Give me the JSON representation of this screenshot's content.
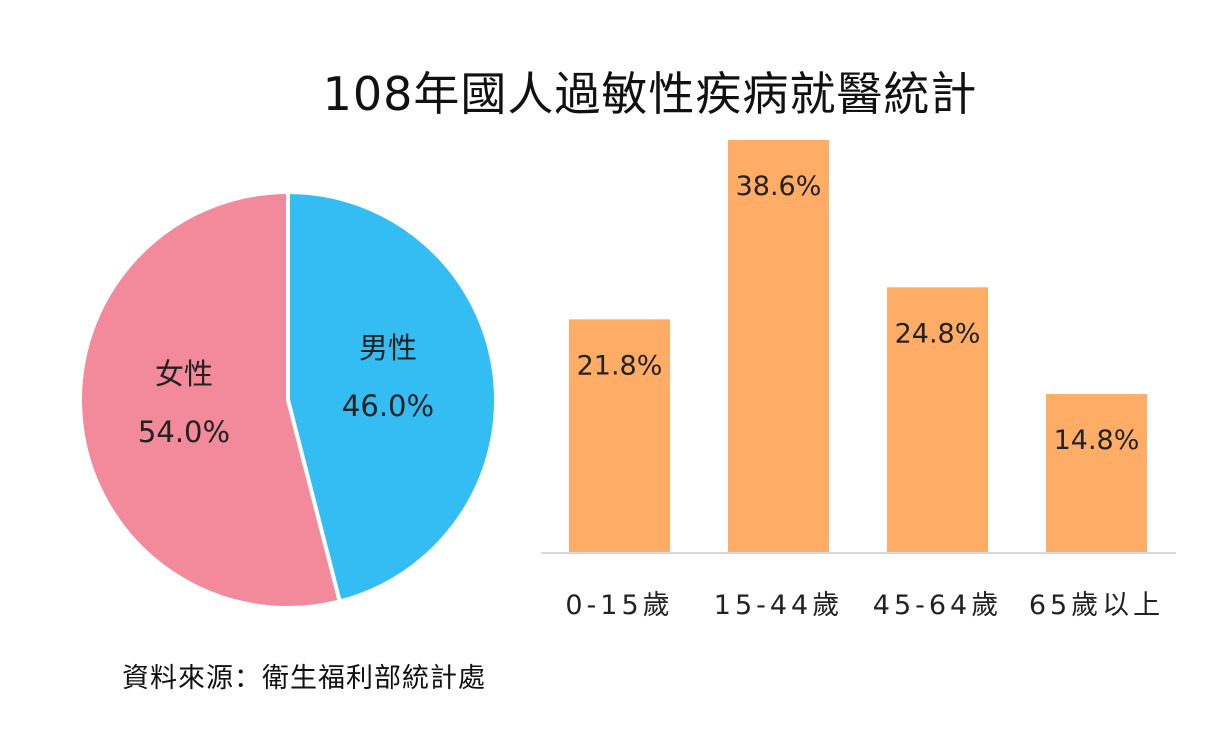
{
  "title": "108年國人過敏性疾病就醫統計",
  "source": "資料來源：衛生福利部統計處",
  "chart_data": [
    {
      "type": "pie",
      "slices": [
        {
          "label": "男性",
          "value": 46.0,
          "display": "46.0%",
          "color": "#33bdf2"
        },
        {
          "label": "女性",
          "value": 54.0,
          "display": "54.0%",
          "color": "#f28a9b"
        }
      ]
    },
    {
      "type": "bar",
      "categories": [
        "0-15歲",
        "15-44歲",
        "45-64歲",
        "65歲以上"
      ],
      "values": [
        21.8,
        38.6,
        24.8,
        14.8
      ],
      "labels": [
        "21.8%",
        "38.6%",
        "24.8%",
        "14.8%"
      ],
      "color": "#ffad66",
      "axis_color": "#d9d9d9",
      "ylim": [
        0,
        38.6
      ]
    }
  ]
}
